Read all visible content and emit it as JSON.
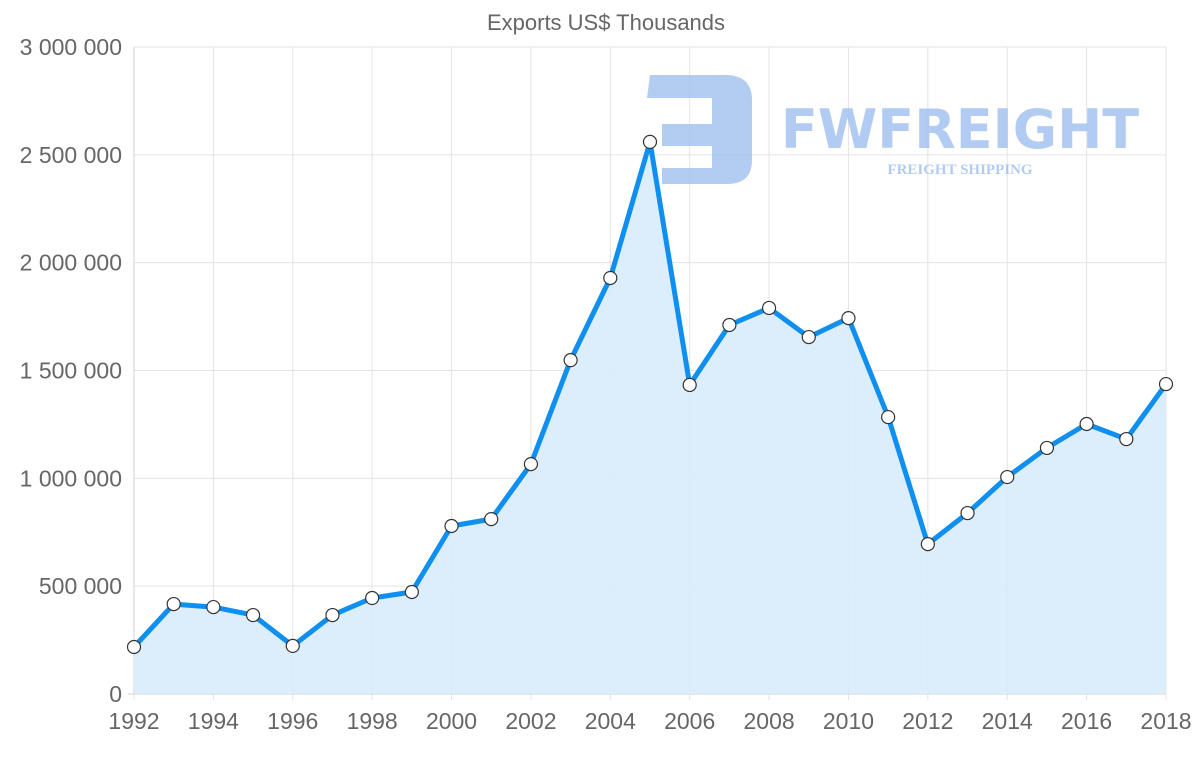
{
  "chart_data": {
    "type": "area",
    "title": "Exports US$ Thousands",
    "xlabel": "",
    "ylabel": "",
    "x": [
      1992,
      1993,
      1994,
      1995,
      1996,
      1997,
      1998,
      1999,
      2000,
      2001,
      2002,
      2003,
      2004,
      2005,
      2006,
      2007,
      2008,
      2009,
      2010,
      2011,
      2012,
      2013,
      2014,
      2015,
      2016,
      2017,
      2018
    ],
    "series": [
      {
        "name": "Exports US$ Thousands",
        "values": [
          218000,
          417000,
          403000,
          366000,
          223000,
          366000,
          445000,
          473000,
          779000,
          811000,
          1066000,
          1548000,
          1929000,
          2560000,
          1433000,
          1711000,
          1790000,
          1655000,
          1743000,
          1284000,
          695000,
          839000,
          1006000,
          1141000,
          1252000,
          1182000,
          1437000
        ]
      }
    ],
    "ylim": [
      0,
      3000000
    ],
    "yticks": [
      "0",
      "500 000",
      "1 000 000",
      "1 500 000",
      "2 000 000",
      "2 500 000",
      "3 000 000"
    ],
    "ytick_values": [
      0,
      500000,
      1000000,
      1500000,
      2000000,
      2500000,
      3000000
    ],
    "xticks": [
      "1992",
      "1994",
      "1996",
      "1998",
      "2000",
      "2002",
      "2004",
      "2006",
      "2008",
      "2010",
      "2012",
      "2014",
      "2016",
      "2018"
    ],
    "grid": true,
    "legend": "none",
    "colors": {
      "line": "#0f8ff0",
      "fill": "#d8ebfc",
      "point_fill": "#ffffff",
      "point_stroke": "#333333"
    }
  },
  "watermark": {
    "brand": "FWFREIGHT",
    "tagline": "FREIGHT SHIPPING",
    "color": "#9fbfef"
  }
}
